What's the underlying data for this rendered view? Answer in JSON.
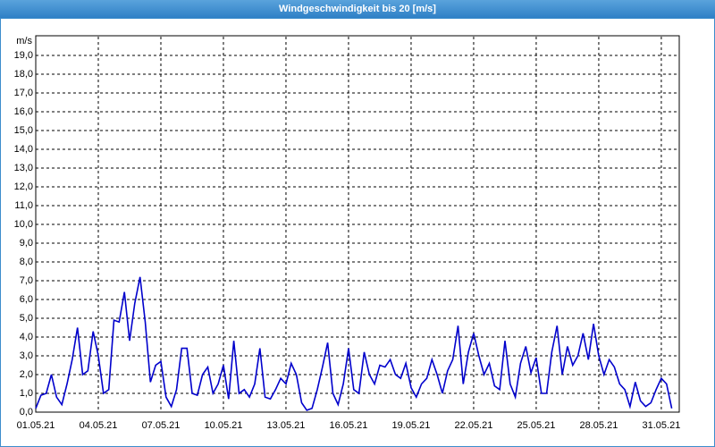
{
  "chart_data": {
    "type": "line",
    "title": "Windgeschwindigkeit bis 20 [m/s]",
    "y_label": "m/s",
    "xlim": [
      0,
      30.86
    ],
    "ylim": [
      0,
      20
    ],
    "grid": true,
    "xticks": [
      {
        "value": 0,
        "label": "01.05.21"
      },
      {
        "value": 3,
        "label": "04.05.21"
      },
      {
        "value": 6,
        "label": "07.05.21"
      },
      {
        "value": 9,
        "label": "10.05.21"
      },
      {
        "value": 12,
        "label": "13.05.21"
      },
      {
        "value": 15,
        "label": "16.05.21"
      },
      {
        "value": 18,
        "label": "19.05.21"
      },
      {
        "value": 21,
        "label": "22.05.21"
      },
      {
        "value": 24,
        "label": "25.05.21"
      },
      {
        "value": 27,
        "label": "28.05.21"
      },
      {
        "value": 30,
        "label": "31.05.21"
      }
    ],
    "yticks": [
      {
        "value": 0,
        "label": "0,0"
      },
      {
        "value": 1,
        "label": "1,0"
      },
      {
        "value": 2,
        "label": "2,0"
      },
      {
        "value": 3,
        "label": "3,0"
      },
      {
        "value": 4,
        "label": "4,0"
      },
      {
        "value": 5,
        "label": "5,0"
      },
      {
        "value": 6,
        "label": "6,0"
      },
      {
        "value": 7,
        "label": "7,0"
      },
      {
        "value": 8,
        "label": "8,0"
      },
      {
        "value": 9,
        "label": "9,0"
      },
      {
        "value": 10,
        "label": "10,0"
      },
      {
        "value": 11,
        "label": "11,0"
      },
      {
        "value": 12,
        "label": "12,0"
      },
      {
        "value": 13,
        "label": "13,0"
      },
      {
        "value": 14,
        "label": "14,0"
      },
      {
        "value": 15,
        "label": "15,0"
      },
      {
        "value": 16,
        "label": "16,0"
      },
      {
        "value": 17,
        "label": "17,0"
      },
      {
        "value": 18,
        "label": "18,0"
      },
      {
        "value": 19,
        "label": "19,0"
      }
    ],
    "x": [
      0,
      0.25,
      0.5,
      0.75,
      1,
      1.25,
      1.5,
      1.75,
      2,
      2.25,
      2.5,
      2.75,
      3,
      3.25,
      3.5,
      3.75,
      4,
      4.25,
      4.5,
      4.75,
      5,
      5.25,
      5.5,
      5.75,
      6,
      6.25,
      6.5,
      6.75,
      7,
      7.25,
      7.5,
      7.75,
      8,
      8.25,
      8.5,
      8.75,
      9,
      9.25,
      9.5,
      9.75,
      10,
      10.25,
      10.5,
      10.75,
      11,
      11.25,
      11.5,
      11.75,
      12,
      12.25,
      12.5,
      12.75,
      13,
      13.25,
      13.5,
      13.75,
      14,
      14.25,
      14.5,
      14.75,
      15,
      15.25,
      15.5,
      15.75,
      16,
      16.25,
      16.5,
      16.75,
      17,
      17.25,
      17.5,
      17.75,
      18,
      18.25,
      18.5,
      18.75,
      19,
      19.25,
      19.5,
      19.75,
      20,
      20.25,
      20.5,
      20.75,
      21,
      21.25,
      21.5,
      21.75,
      22,
      22.25,
      22.5,
      22.75,
      23,
      23.25,
      23.5,
      23.75,
      24,
      24.25,
      24.5,
      24.75,
      25,
      25.25,
      25.5,
      25.75,
      26,
      26.25,
      26.5,
      26.75,
      27,
      27.25,
      27.5,
      27.75,
      28,
      28.25,
      28.5,
      28.75,
      29,
      29.25,
      29.5,
      29.75,
      30,
      30.25,
      30.5
    ],
    "series": [
      {
        "name": "Windgeschwindigkeit",
        "color": "#0000cc",
        "values": [
          0.2,
          0.9,
          1.0,
          2.0,
          0.8,
          0.4,
          1.5,
          2.8,
          4.5,
          2.0,
          2.2,
          4.3,
          3.0,
          1.0,
          1.2,
          4.9,
          4.8,
          6.4,
          3.8,
          5.8,
          7.2,
          4.8,
          1.6,
          2.5,
          2.7,
          0.8,
          0.3,
          1.2,
          3.4,
          3.4,
          1.0,
          0.9,
          2.0,
          2.4,
          1.0,
          1.5,
          2.5,
          0.7,
          3.8,
          1.0,
          1.2,
          0.8,
          1.5,
          3.4,
          0.8,
          0.7,
          1.2,
          1.8,
          1.5,
          2.6,
          2.0,
          0.5,
          0.1,
          0.2,
          1.2,
          2.4,
          3.7,
          1.0,
          0.4,
          1.5,
          3.4,
          1.2,
          1.0,
          3.2,
          2.0,
          1.5,
          2.5,
          2.4,
          2.8,
          2.0,
          1.8,
          2.6,
          1.3,
          0.8,
          1.5,
          1.8,
          2.8,
          2.0,
          1.0,
          2.2,
          2.8,
          4.6,
          1.5,
          3.2,
          4.2,
          3.0,
          2.0,
          2.6,
          1.4,
          1.2,
          3.8,
          1.5,
          0.8,
          2.6,
          3.5,
          2.1,
          2.9,
          1.0,
          1.0,
          3.2,
          4.6,
          2.0,
          3.5,
          2.5,
          3.0,
          4.2,
          2.8,
          4.7,
          3.0,
          2.0,
          2.8,
          2.4,
          1.5,
          1.2,
          0.3,
          1.6,
          0.6,
          0.3,
          0.5,
          1.2,
          1.8,
          1.5,
          0.2
        ]
      }
    ]
  }
}
